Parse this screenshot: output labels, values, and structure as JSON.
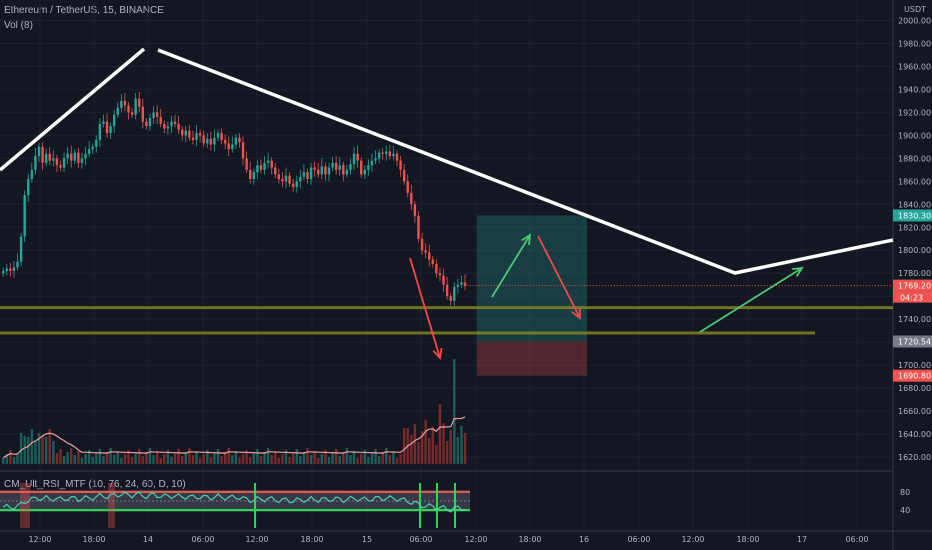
{
  "header": {
    "symbol": "Ethereum / TetherUS, 15, BINANCE",
    "volume": "Vol (8)",
    "indicator": "CM_Ult_RSI_MTF (10, 76, 24, 60, D, 10)"
  },
  "chart_data": {
    "type": "candlestick",
    "currency_label": "USDT",
    "y_ticks": [
      2000,
      1980,
      1960,
      1940,
      1920,
      1900,
      1880,
      1860,
      1840,
      1820,
      1800,
      1780,
      1760,
      1740,
      1720,
      1700,
      1680,
      1660,
      1640,
      1620
    ],
    "y_tick_labels": [
      "2000.00",
      "1980.00",
      "1960.00",
      "1940.00",
      "1920.00",
      "1900.00",
      "1880.00",
      "1860.00",
      "1840.00",
      "1820.00",
      "1800.00",
      "1780.00",
      "1760.00",
      "1740.00",
      "1720.00",
      "1700.00",
      "1680.00",
      "1660.00",
      "1640.00",
      "1620.00"
    ],
    "x_tick_labels": [
      "12:00",
      "18:00",
      "14",
      "06:00",
      "12:00",
      "18:00",
      "15",
      "06:00",
      "12:00",
      "18:00",
      "16",
      "06:00",
      "12:00",
      "18:00",
      "17",
      "06:00"
    ],
    "rsi_ticks": [
      80,
      40
    ],
    "price_labels": [
      {
        "value": 1830.3,
        "text": "1830.30",
        "color": "#26a69a"
      },
      {
        "value": 1769.2,
        "text": "1769.20",
        "color": "#ef5350"
      },
      {
        "value": 1720.54,
        "text": "1720.54",
        "color": "#787b86"
      },
      {
        "value": 1690.8,
        "text": "1690.80",
        "color": "#ef5350"
      }
    ],
    "countdown": "04:23",
    "close_price": 1769.2,
    "candles_closes": [
      1782,
      1784,
      1782,
      1785,
      1790,
      1812,
      1848,
      1862,
      1870,
      1882,
      1890,
      1876,
      1884,
      1878,
      1880,
      1874,
      1872,
      1880,
      1884,
      1878,
      1885,
      1876,
      1880,
      1884,
      1888,
      1890,
      1896,
      1910,
      1912,
      1902,
      1908,
      1918,
      1924,
      1930,
      1926,
      1920,
      1918,
      1932,
      1925,
      1912,
      1908,
      1915,
      1920,
      1916,
      1910,
      1906,
      1908,
      1912,
      1910,
      1905,
      1900,
      1904,
      1898,
      1896,
      1902,
      1900,
      1893,
      1897,
      1892,
      1898,
      1902,
      1896,
      1893,
      1888,
      1892,
      1898,
      1894,
      1880,
      1870,
      1862,
      1868,
      1874,
      1870,
      1876,
      1878,
      1872,
      1866,
      1862,
      1860,
      1865,
      1858,
      1855,
      1860,
      1864,
      1868,
      1862,
      1872,
      1870,
      1866,
      1873,
      1866,
      1872,
      1876,
      1870,
      1874,
      1866,
      1870,
      1875,
      1884,
      1878,
      1866,
      1870,
      1874,
      1878,
      1880,
      1885,
      1884,
      1886,
      1882,
      1884,
      1878,
      1870,
      1860,
      1850,
      1840,
      1830,
      1810,
      1800,
      1798,
      1792,
      1788,
      1780,
      1778,
      1770,
      1760,
      1756,
      1768,
      1770,
      1772,
      1769
    ],
    "overlays": {
      "trendline_left": [
        [
          "12:00",
          1868
        ],
        [
          "14",
          1978
        ]
      ],
      "trendline_main": [
        [
          "14",
          1975
        ],
        [
          "16 18:00",
          1779
        ],
        [
          "17 12:00",
          1808
        ]
      ],
      "support_lines": [
        1750,
        1728
      ],
      "position": {
        "profit_top": 1830.3,
        "entry": 1720.54,
        "stop": 1690.8
      }
    }
  }
}
